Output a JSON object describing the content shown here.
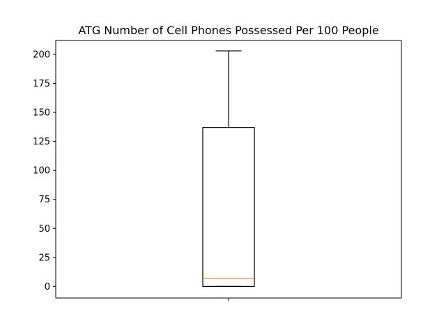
{
  "chart_data": {
    "type": "box",
    "title": "ATG Number of Cell Phones Possessed Per 100 People",
    "xlabel": "",
    "ylabel": "",
    "ylim": [
      -10,
      212
    ],
    "yticks": [
      0,
      25,
      50,
      75,
      100,
      125,
      150,
      175,
      200
    ],
    "grid": false,
    "box": {
      "whisker_low": 0,
      "q1": 0,
      "median": 7,
      "q3": 137,
      "whisker_high": 203
    },
    "colors": {
      "box": "#000000",
      "median": "#ff7f0e",
      "axes": "#000000"
    }
  }
}
